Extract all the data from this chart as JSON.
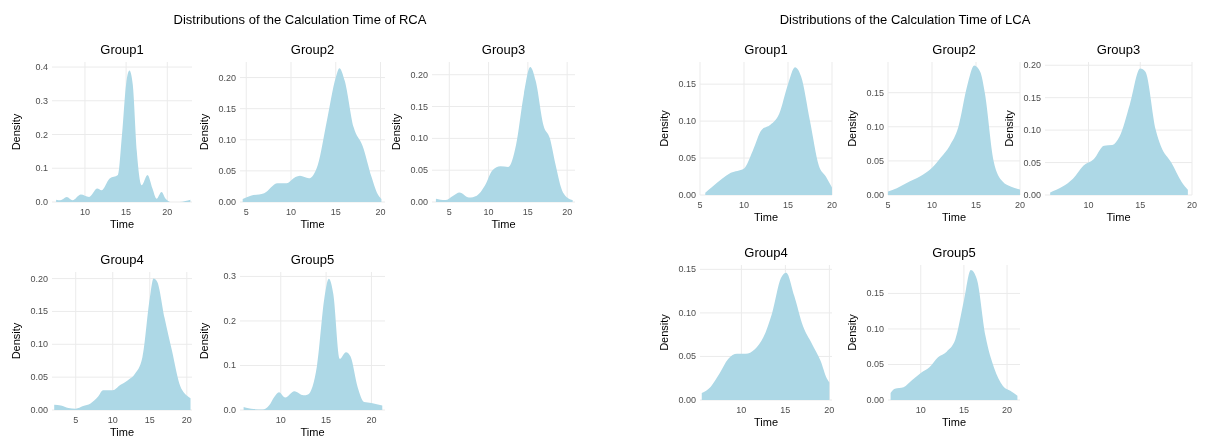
{
  "chart_data": [
    {
      "type": "area",
      "title": "Group1",
      "xlabel": "Time",
      "ylabel": "Density",
      "annotations": [
        "Distributions of the Calculation Time of RCA"
      ],
      "color": "#add8e6",
      "grid": true,
      "xlim": [
        6,
        23
      ],
      "ylim": [
        0,
        0.415
      ],
      "xticks": [
        10,
        15,
        20
      ],
      "yticks": [
        {
          "value": 0,
          "label": "0.0"
        },
        {
          "value": 0.1,
          "label": "0.1"
        },
        {
          "value": 0.2,
          "label": "0.2"
        },
        {
          "value": 0.3,
          "label": "0.3"
        },
        {
          "value": 0.4,
          "label": "0.4"
        }
      ],
      "x": [
        6.5,
        7,
        7.8,
        8.5,
        9.5,
        10.5,
        11.5,
        12,
        13,
        14,
        14.5,
        15,
        15.4,
        15.8,
        16.3,
        16.9,
        17.6,
        18.2,
        18.7,
        19.3,
        19.8,
        20.5,
        21.5,
        22.2,
        22.8
      ],
      "values": [
        0.007,
        0.005,
        0.015,
        0.005,
        0.022,
        0.015,
        0.04,
        0.035,
        0.07,
        0.08,
        0.2,
        0.35,
        0.39,
        0.35,
        0.15,
        0.05,
        0.08,
        0.04,
        0.01,
        0.03,
        0.01,
        0,
        0,
        0.003,
        0.007
      ]
    },
    {
      "type": "area",
      "title": "Group2",
      "xlabel": "Time",
      "ylabel": "Density",
      "color": "#add8e6",
      "grid": true,
      "xlim": [
        4.3,
        20.5
      ],
      "ylim": [
        0,
        0.225
      ],
      "xticks": [
        5,
        10,
        15,
        20
      ],
      "yticks": [
        {
          "value": 0,
          "label": "0.00"
        },
        {
          "value": 0.05,
          "label": "0.05"
        },
        {
          "value": 0.1,
          "label": "0.10"
        },
        {
          "value": 0.15,
          "label": "0.15"
        },
        {
          "value": 0.2,
          "label": "0.20"
        }
      ],
      "x": [
        4.6,
        5.5,
        7,
        8.5,
        9.5,
        10.5,
        11,
        12,
        13,
        14,
        15,
        15.4,
        16,
        17,
        18,
        19,
        19.6,
        20.1
      ],
      "values": [
        0.005,
        0.01,
        0.014,
        0.03,
        0.03,
        0.04,
        0.042,
        0.038,
        0.06,
        0.13,
        0.2,
        0.215,
        0.195,
        0.12,
        0.09,
        0.04,
        0.015,
        0.005
      ]
    },
    {
      "type": "area",
      "title": "Group3",
      "xlabel": "Time",
      "ylabel": "Density",
      "color": "#add8e6",
      "grid": true,
      "xlim": [
        2.8,
        21
      ],
      "ylim": [
        0,
        0.22
      ],
      "xticks": [
        5,
        10,
        15,
        20
      ],
      "yticks": [
        {
          "value": 0,
          "label": "0.00"
        },
        {
          "value": 0.05,
          "label": "0.05"
        },
        {
          "value": 0.1,
          "label": "0.10"
        },
        {
          "value": 0.15,
          "label": "0.15"
        },
        {
          "value": 0.2,
          "label": "0.20"
        }
      ],
      "x": [
        3.3,
        4.5,
        5.5,
        6.3,
        7.5,
        8.5,
        9.5,
        10.5,
        11.5,
        12.5,
        13.5,
        14.5,
        15.3,
        16,
        17,
        17.8,
        18.5,
        19.3,
        20,
        20.7
      ],
      "values": [
        0.005,
        0.003,
        0.01,
        0.015,
        0.007,
        0.01,
        0.025,
        0.05,
        0.056,
        0.055,
        0.09,
        0.17,
        0.212,
        0.19,
        0.12,
        0.1,
        0.06,
        0.02,
        0.007,
        0.003
      ]
    },
    {
      "type": "area",
      "title": "Group4",
      "xlabel": "Time",
      "ylabel": "Density",
      "color": "#add8e6",
      "grid": true,
      "xlim": [
        1.8,
        20.7
      ],
      "ylim": [
        0,
        0.21
      ],
      "xticks": [
        5,
        10,
        15,
        20
      ],
      "yticks": [
        {
          "value": 0,
          "label": "0.00"
        },
        {
          "value": 0.05,
          "label": "0.05"
        },
        {
          "value": 0.1,
          "label": "0.10"
        },
        {
          "value": 0.15,
          "label": "0.15"
        },
        {
          "value": 0.2,
          "label": "0.20"
        }
      ],
      "x": [
        2.1,
        3,
        4,
        5,
        6,
        7,
        8,
        8.7,
        10,
        11,
        12,
        13,
        14,
        15,
        15.5,
        16,
        17,
        18,
        19,
        20,
        20.5
      ],
      "values": [
        0.008,
        0.007,
        0.003,
        0.002,
        0.006,
        0.01,
        0.02,
        0.03,
        0.03,
        0.038,
        0.045,
        0.055,
        0.08,
        0.17,
        0.2,
        0.195,
        0.14,
        0.09,
        0.04,
        0.022,
        0.018
      ]
    },
    {
      "type": "area",
      "title": "Group5",
      "xlabel": "Time",
      "ylabel": "Density",
      "color": "#add8e6",
      "grid": true,
      "xlim": [
        5.5,
        21.5
      ],
      "ylim": [
        0,
        0.31
      ],
      "xticks": [
        10,
        15,
        20
      ],
      "yticks": [
        {
          "value": 0,
          "label": "0.0"
        },
        {
          "value": 0.1,
          "label": "0.1"
        },
        {
          "value": 0.2,
          "label": "0.2"
        },
        {
          "value": 0.3,
          "label": "0.3"
        }
      ],
      "x": [
        5.9,
        7,
        8,
        8.7,
        9.3,
        9.8,
        10.5,
        11.5,
        12.5,
        13,
        14,
        14.8,
        15.3,
        15.8,
        16.5,
        17.2,
        17.7,
        18.5,
        19.2,
        20,
        21.2
      ],
      "values": [
        0.007,
        0.002,
        0.001,
        0.01,
        0.03,
        0.04,
        0.028,
        0.042,
        0.033,
        0.035,
        0.1,
        0.25,
        0.295,
        0.26,
        0.115,
        0.13,
        0.12,
        0.05,
        0.018,
        0.016,
        0.01
      ]
    },
    {
      "type": "area",
      "title": "Group1",
      "xlabel": "Time",
      "ylabel": "Density",
      "annotations": [
        "Distributions of the Calculation Time of LCA"
      ],
      "color": "#add8e6",
      "grid": true,
      "xlim": [
        5,
        20
      ],
      "ylim": [
        0,
        0.18
      ],
      "xticks": [
        5,
        10,
        15,
        20
      ],
      "yticks": [
        {
          "value": 0,
          "label": "0.00"
        },
        {
          "value": 0.05,
          "label": "0.05"
        },
        {
          "value": 0.1,
          "label": "0.10"
        },
        {
          "value": 0.15,
          "label": "0.15"
        }
      ],
      "x": [
        5.6,
        6.3,
        7.5,
        8.5,
        10,
        11,
        12,
        13,
        14,
        15,
        15.8,
        16.5,
        17.5,
        18.5,
        19.3,
        20
      ],
      "values": [
        0.003,
        0.01,
        0.022,
        0.03,
        0.036,
        0.06,
        0.088,
        0.095,
        0.11,
        0.15,
        0.173,
        0.16,
        0.1,
        0.04,
        0.025,
        0.01
      ]
    },
    {
      "type": "area",
      "title": "Group2",
      "xlabel": "Time",
      "ylabel": "Density",
      "color": "#add8e6",
      "grid": true,
      "xlim": [
        5,
        20
      ],
      "ylim": [
        0,
        0.195
      ],
      "xticks": [
        5,
        10,
        15,
        20
      ],
      "yticks": [
        {
          "value": 0,
          "label": "0.00"
        },
        {
          "value": 0.05,
          "label": "0.05"
        },
        {
          "value": 0.1,
          "label": "0.10"
        },
        {
          "value": 0.15,
          "label": "0.15"
        }
      ],
      "x": [
        5,
        6,
        7.5,
        9,
        10,
        11,
        12,
        13,
        14,
        14.8,
        15.5,
        16,
        17,
        18,
        19,
        20
      ],
      "values": [
        0.005,
        0.01,
        0.02,
        0.03,
        0.04,
        0.055,
        0.072,
        0.1,
        0.16,
        0.19,
        0.18,
        0.15,
        0.05,
        0.02,
        0.012,
        0.008
      ]
    },
    {
      "type": "area",
      "title": "Group3",
      "xlabel": "Time",
      "ylabel": "Density",
      "color": "#add8e6",
      "grid": true,
      "xlim": [
        5.8,
        20
      ],
      "ylim": [
        0,
        0.205
      ],
      "xticks": [
        10,
        15,
        20
      ],
      "yticks": [
        {
          "value": 0,
          "label": "0.00"
        },
        {
          "value": 0.05,
          "label": "0.05"
        },
        {
          "value": 0.1,
          "label": "0.10"
        },
        {
          "value": 0.15,
          "label": "0.15"
        },
        {
          "value": 0.2,
          "label": "0.20"
        }
      ],
      "x": [
        6.3,
        7.5,
        8.5,
        9.5,
        10.5,
        11.5,
        12.3,
        13,
        14,
        15,
        15.5,
        16.5,
        17,
        18,
        19,
        19.6
      ],
      "values": [
        0.004,
        0.013,
        0.025,
        0.045,
        0.055,
        0.076,
        0.077,
        0.09,
        0.14,
        0.195,
        0.19,
        0.1,
        0.075,
        0.05,
        0.02,
        0.008
      ]
    },
    {
      "type": "area",
      "title": "Group4",
      "xlabel": "Time",
      "ylabel": "Density",
      "color": "#add8e6",
      "grid": true,
      "xlim": [
        5.3,
        20.3
      ],
      "ylim": [
        0,
        0.155
      ],
      "xticks": [
        10,
        15,
        20
      ],
      "yticks": [
        {
          "value": 0,
          "label": "0.00"
        },
        {
          "value": 0.05,
          "label": "0.05"
        },
        {
          "value": 0.1,
          "label": "0.10"
        },
        {
          "value": 0.15,
          "label": "0.15"
        }
      ],
      "x": [
        5.5,
        6.5,
        7.5,
        8.5,
        9.5,
        10.5,
        11.5,
        12.5,
        13.5,
        14.5,
        15.1,
        16,
        17,
        18,
        19,
        19.7,
        20
      ],
      "values": [
        0.008,
        0.015,
        0.03,
        0.047,
        0.053,
        0.053,
        0.058,
        0.072,
        0.1,
        0.14,
        0.146,
        0.12,
        0.085,
        0.065,
        0.045,
        0.025,
        0.02
      ]
    },
    {
      "type": "area",
      "title": "Group5",
      "xlabel": "Time",
      "ylabel": "Density",
      "color": "#add8e6",
      "grid": true,
      "xlim": [
        6.2,
        21.5
      ],
      "ylim": [
        0,
        0.19
      ],
      "xticks": [
        10,
        15,
        20
      ],
      "yticks": [
        {
          "value": 0,
          "label": "0.00"
        },
        {
          "value": 0.05,
          "label": "0.05"
        },
        {
          "value": 0.1,
          "label": "0.10"
        },
        {
          "value": 0.15,
          "label": "0.15"
        }
      ],
      "x": [
        6.5,
        7,
        8,
        9,
        10,
        11,
        12,
        13,
        14,
        15,
        15.8,
        16.5,
        17.5,
        18.5,
        19.5,
        20.5,
        21.2
      ],
      "values": [
        0.01,
        0.016,
        0.018,
        0.028,
        0.038,
        0.046,
        0.06,
        0.068,
        0.085,
        0.14,
        0.183,
        0.17,
        0.09,
        0.045,
        0.02,
        0.012,
        0.006
      ]
    }
  ]
}
